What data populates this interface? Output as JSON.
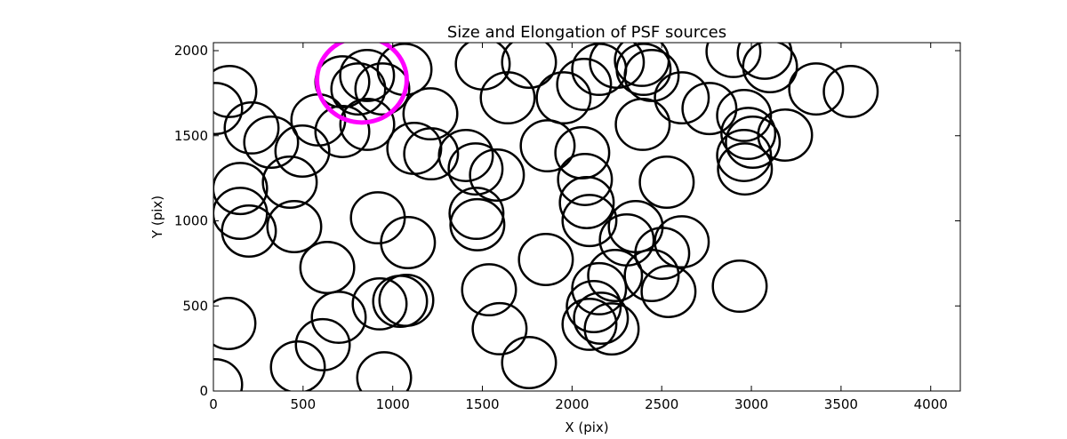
{
  "chart_data": {
    "type": "scatter",
    "title": "Size and Elongation of PSF sources",
    "xlabel": "X (pix)",
    "ylabel": "Y (pix)",
    "xlim": [
      0,
      4165
    ],
    "ylim": [
      0,
      2047
    ],
    "xticks": [
      "0",
      "500",
      "1000",
      "1500",
      "2000",
      "2500",
      "3000",
      "3500",
      "4000"
    ],
    "yticks": [
      "0",
      "500",
      "1000",
      "1500",
      "2000"
    ],
    "grid": false,
    "marker": "ellipse",
    "source_radius": 150,
    "source_color": "#000000",
    "sources": [
      [
        89,
        1760
      ],
      [
        10,
        1660
      ],
      [
        213,
        1546
      ],
      [
        322,
        1462
      ],
      [
        496,
        1410
      ],
      [
        585,
        1593
      ],
      [
        719,
        1525
      ],
      [
        426,
        1227
      ],
      [
        149,
        1190
      ],
      [
        149,
        1044
      ],
      [
        198,
        940
      ],
      [
        451,
        966
      ],
      [
        635,
        726
      ],
      [
        699,
        433
      ],
      [
        610,
        272
      ],
      [
        471,
        141
      ],
      [
        927,
        512
      ],
      [
        1076,
        533
      ],
      [
        1041,
        527
      ],
      [
        84,
        397
      ],
      [
        10,
        37
      ],
      [
        952,
        78
      ],
      [
        917,
        1018
      ],
      [
        1085,
        872
      ],
      [
        857,
        1854
      ],
      [
        719,
        1817
      ],
      [
        808,
        1775
      ],
      [
        942,
        1775
      ],
      [
        1066,
        1890
      ],
      [
        858,
        1567
      ],
      [
        1210,
        1629
      ],
      [
        1120,
        1426
      ],
      [
        1214,
        1394
      ],
      [
        1408,
        1384
      ],
      [
        1462,
        1305
      ],
      [
        1581,
        1269
      ],
      [
        1467,
        1044
      ],
      [
        1472,
        977
      ],
      [
        1537,
        595
      ],
      [
        1596,
        366
      ],
      [
        1760,
        167
      ],
      [
        1854,
        773
      ],
      [
        1502,
        1922
      ],
      [
        1760,
        1932
      ],
      [
        1641,
        1723
      ],
      [
        1864,
        1441
      ],
      [
        1953,
        1723
      ],
      [
        2067,
        1802
      ],
      [
        2151,
        1890
      ],
      [
        2250,
        1932
      ],
      [
        2389,
        1943
      ],
      [
        2399,
        1890
      ],
      [
        2444,
        1854
      ],
      [
        2394,
        1567
      ],
      [
        2057,
        1400
      ],
      [
        2072,
        1243
      ],
      [
        2082,
        1107
      ],
      [
        2097,
        1002
      ],
      [
        2528,
        1227
      ],
      [
        2355,
        966
      ],
      [
        2305,
        888
      ],
      [
        2612,
        877
      ],
      [
        2503,
        809
      ],
      [
        2444,
        679
      ],
      [
        2538,
        585
      ],
      [
        2240,
        679
      ],
      [
        2151,
        601
      ],
      [
        2121,
        496
      ],
      [
        2161,
        428
      ],
      [
        2221,
        365
      ],
      [
        2097,
        392
      ],
      [
        2935,
        616
      ],
      [
        2612,
        1723
      ],
      [
        2766,
        1660
      ],
      [
        2900,
        1995
      ],
      [
        3074,
        1985
      ],
      [
        3104,
        1906
      ],
      [
        2959,
        1619
      ],
      [
        2983,
        1514
      ],
      [
        3008,
        1462
      ],
      [
        3188,
        1504
      ],
      [
        2959,
        1384
      ],
      [
        2964,
        1305
      ],
      [
        3361,
        1775
      ],
      [
        3554,
        1760
      ]
    ],
    "highlight": {
      "x": 828,
      "y": 1828,
      "radius": 250,
      "color": "#ff00ff"
    }
  }
}
